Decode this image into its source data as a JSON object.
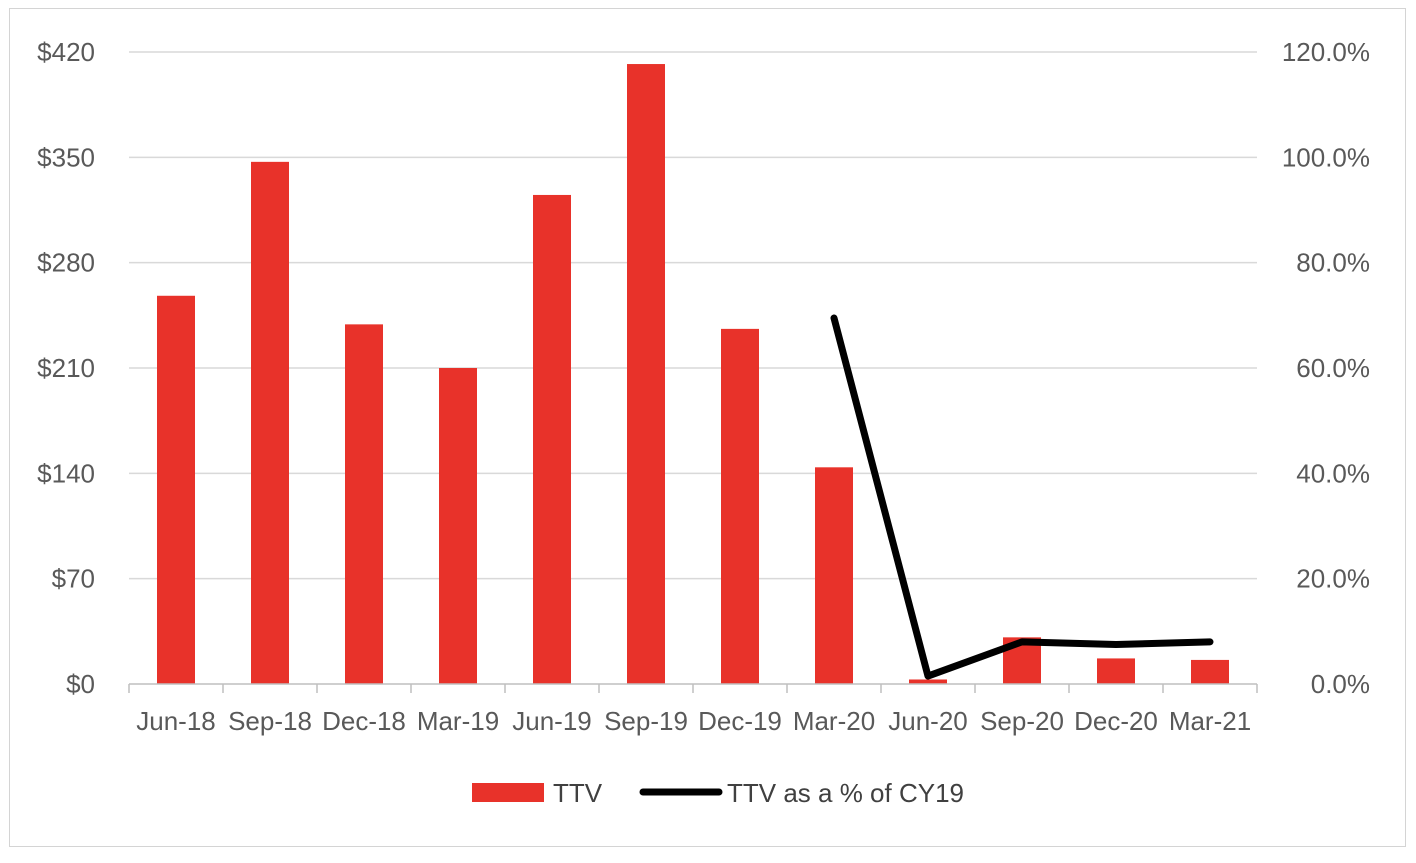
{
  "chart_data": {
    "type": "bar",
    "categories": [
      "Jun-18",
      "Sep-18",
      "Dec-18",
      "Mar-19",
      "Jun-19",
      "Sep-19",
      "Dec-19",
      "Mar-20",
      "Jun-20",
      "Sep-20",
      "Dec-20",
      "Mar-21"
    ],
    "series": [
      {
        "name": "TTV",
        "type": "bar",
        "axis": "left",
        "color": "#e8322a",
        "values": [
          258,
          347,
          239,
          210,
          325,
          412,
          236,
          144,
          3,
          31,
          17,
          16
        ]
      },
      {
        "name": "TTV as a % of CY19",
        "type": "line",
        "axis": "right",
        "color": "#000000",
        "values": [
          null,
          null,
          null,
          null,
          null,
          null,
          null,
          69.5,
          1.5,
          8.0,
          7.5,
          8.0
        ]
      }
    ],
    "y_left": {
      "ylim": [
        0,
        420
      ],
      "ticks": [
        0,
        70,
        140,
        210,
        280,
        350,
        420
      ],
      "tick_labels": [
        "$0",
        "$70",
        "$140",
        "$210",
        "$280",
        "$350",
        "$420"
      ]
    },
    "y_right": {
      "ylim": [
        0,
        120
      ],
      "ticks": [
        0,
        20,
        40,
        60,
        80,
        100,
        120
      ],
      "tick_labels": [
        "0.0%",
        "20.0%",
        "40.0%",
        "60.0%",
        "80.0%",
        "100.0%",
        "120.0%"
      ]
    },
    "grid": true,
    "legend": {
      "position": "bottom",
      "entries": [
        "TTV",
        "TTV as a % of CY19"
      ]
    }
  }
}
